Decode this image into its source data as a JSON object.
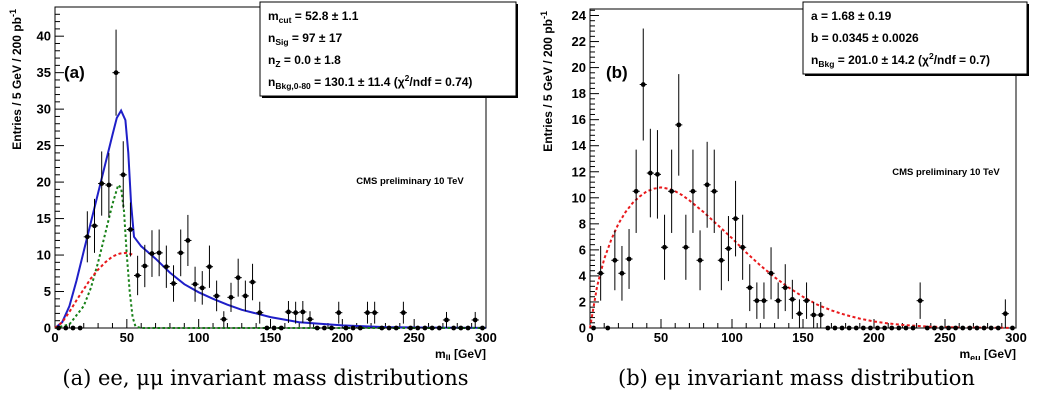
{
  "chart_data": [
    {
      "type": "scatter",
      "panel_label": "(a)",
      "ylabel": "Entries / 5 GeV / 200 pb",
      "ylabel_sup": "-1",
      "xlabel": "m",
      "xlabel_sub": "ll",
      "xlabel_unit": " [GeV]",
      "xlim": [
        0,
        300
      ],
      "ylim": [
        0,
        44
      ],
      "x_ticks": [
        0,
        50,
        100,
        150,
        200,
        250,
        300
      ],
      "y_ticks": [
        0,
        5,
        10,
        15,
        20,
        25,
        30,
        35,
        40
      ],
      "grid": false,
      "watermark": "CMS preliminary 10 TeV",
      "stats_box": [
        {
          "name": "m",
          "sub": "cut",
          "text": " = 52.8 ± 1.1"
        },
        {
          "name": "n",
          "sub": "Sig",
          "text": " = 97 ± 17"
        },
        {
          "name": "n",
          "sub": "Z",
          "text": " = 0.0 ± 1.8"
        },
        {
          "name": "n",
          "sub": "Bkg,0-80",
          "text": " = 130.1 ± 11.4 (χ",
          "sup": "2",
          "tail": "/ndf = 0.74)"
        }
      ],
      "points": [
        {
          "x": 2.5,
          "y": 0,
          "err": 0
        },
        {
          "x": 7.5,
          "y": 0,
          "err": 0
        },
        {
          "x": 12.5,
          "y": 0,
          "err": 0
        },
        {
          "x": 17.5,
          "y": 0,
          "err": 0
        },
        {
          "x": 22.5,
          "y": 12.5,
          "err": 3.5
        },
        {
          "x": 27.5,
          "y": 14,
          "err": 3.7
        },
        {
          "x": 32.5,
          "y": 19.8,
          "err": 4.4
        },
        {
          "x": 37.5,
          "y": 19.6,
          "err": 4.4
        },
        {
          "x": 42.5,
          "y": 35,
          "err": 5.9
        },
        {
          "x": 47.5,
          "y": 21,
          "err": 4.6
        },
        {
          "x": 52.5,
          "y": 13.5,
          "err": 3.7
        },
        {
          "x": 57.5,
          "y": 7.2,
          "err": 2.7
        },
        {
          "x": 62.5,
          "y": 8.5,
          "err": 2.9
        },
        {
          "x": 67.5,
          "y": 10.2,
          "err": 3.2
        },
        {
          "x": 72.5,
          "y": 10.3,
          "err": 3.2
        },
        {
          "x": 77.5,
          "y": 8.4,
          "err": 2.9
        },
        {
          "x": 82.5,
          "y": 6.1,
          "err": 2.5
        },
        {
          "x": 87.5,
          "y": 10.3,
          "err": 3.2
        },
        {
          "x": 92.5,
          "y": 12,
          "err": 3.5
        },
        {
          "x": 97.5,
          "y": 6,
          "err": 2.4
        },
        {
          "x": 102.5,
          "y": 5.5,
          "err": 2.3
        },
        {
          "x": 107.5,
          "y": 8.4,
          "err": 2.9
        },
        {
          "x": 112.5,
          "y": 4.4,
          "err": 2.1
        },
        {
          "x": 117.5,
          "y": 1.2,
          "err": 1.1
        },
        {
          "x": 122.5,
          "y": 4.2,
          "err": 2
        },
        {
          "x": 127.5,
          "y": 6.9,
          "err": 2.6
        },
        {
          "x": 132.5,
          "y": 4.4,
          "err": 2.1
        },
        {
          "x": 137.5,
          "y": 6.3,
          "err": 2.5
        },
        {
          "x": 142.5,
          "y": 2.1,
          "err": 1.5
        },
        {
          "x": 147.5,
          "y": 0,
          "err": 0
        },
        {
          "x": 152.5,
          "y": 0,
          "err": 0
        },
        {
          "x": 157.5,
          "y": 0,
          "err": 0
        },
        {
          "x": 162.5,
          "y": 2.2,
          "err": 1.5
        },
        {
          "x": 167.5,
          "y": 2.1,
          "err": 1.5
        },
        {
          "x": 172.5,
          "y": 2.2,
          "err": 1.5
        },
        {
          "x": 177.5,
          "y": 1.2,
          "err": 1.1
        },
        {
          "x": 182.5,
          "y": 0,
          "err": 0
        },
        {
          "x": 187.5,
          "y": 0,
          "err": 0
        },
        {
          "x": 192.5,
          "y": 0,
          "err": 0
        },
        {
          "x": 197.5,
          "y": 2.1,
          "err": 1.5
        },
        {
          "x": 202.5,
          "y": 0,
          "err": 0
        },
        {
          "x": 207.5,
          "y": 0,
          "err": 0
        },
        {
          "x": 212.5,
          "y": 0,
          "err": 0
        },
        {
          "x": 217.5,
          "y": 2.1,
          "err": 1.5
        },
        {
          "x": 222.5,
          "y": 2.1,
          "err": 1.5
        },
        {
          "x": 227.5,
          "y": 0,
          "err": 0
        },
        {
          "x": 232.5,
          "y": 0,
          "err": 0
        },
        {
          "x": 237.5,
          "y": 0,
          "err": 0
        },
        {
          "x": 242.5,
          "y": 2.1,
          "err": 1.5
        },
        {
          "x": 247.5,
          "y": 0,
          "err": 0
        },
        {
          "x": 252.5,
          "y": 0,
          "err": 0
        },
        {
          "x": 257.5,
          "y": 0,
          "err": 0
        },
        {
          "x": 262.5,
          "y": 0,
          "err": 0
        },
        {
          "x": 267.5,
          "y": 0,
          "err": 0
        },
        {
          "x": 272.5,
          "y": 1.1,
          "err": 1.1
        },
        {
          "x": 277.5,
          "y": 0,
          "err": 0
        },
        {
          "x": 282.5,
          "y": 0,
          "err": 0
        },
        {
          "x": 287.5,
          "y": 0,
          "err": 0
        },
        {
          "x": 292.5,
          "y": 1.1,
          "err": 1.1
        },
        {
          "x": 297.5,
          "y": 0,
          "err": 0
        }
      ],
      "curves": [
        {
          "style": "total-fit",
          "color": "#1f1fc8",
          "dash": "",
          "points": [
            [
              0,
              0
            ],
            [
              5,
              0.8
            ],
            [
              10,
              3
            ],
            [
              15,
              6.5
            ],
            [
              20,
              10.5
            ],
            [
              25,
              14.5
            ],
            [
              30,
              18.5
            ],
            [
              35,
              22.5
            ],
            [
              40,
              26.5
            ],
            [
              43,
              28.8
            ],
            [
              46,
              29.8
            ],
            [
              49,
              28.5
            ],
            [
              51,
              24
            ],
            [
              53,
              17
            ],
            [
              55,
              12.5
            ],
            [
              60,
              11.2
            ],
            [
              70,
              9.5
            ],
            [
              80,
              7.6
            ],
            [
              90,
              6
            ],
            [
              100,
              4.9
            ],
            [
              110,
              4
            ],
            [
              120,
              3.2
            ],
            [
              130,
              2.5
            ],
            [
              150,
              1.5
            ],
            [
              170,
              0.8
            ],
            [
              200,
              0.35
            ],
            [
              230,
              0.12
            ],
            [
              260,
              0.05
            ],
            [
              300,
              0.02
            ]
          ]
        },
        {
          "style": "signal",
          "color": "#178017",
          "dash": "2.5,2.5",
          "points": [
            [
              0,
              0
            ],
            [
              10,
              0.5
            ],
            [
              20,
              3
            ],
            [
              25,
              5.5
            ],
            [
              30,
              9
            ],
            [
              35,
              13
            ],
            [
              40,
              17
            ],
            [
              44,
              19.6
            ],
            [
              46,
              19.2
            ],
            [
              48,
              16
            ],
            [
              50,
              10
            ],
            [
              52,
              5
            ],
            [
              54,
              1.5
            ],
            [
              56,
              0.2
            ],
            [
              60,
              0
            ],
            [
              300,
              0
            ]
          ]
        },
        {
          "style": "background",
          "color": "#e8191c",
          "dash": "3,2.5",
          "points": [
            [
              0,
              0
            ],
            [
              5,
              0.8
            ],
            [
              10,
              2.2
            ],
            [
              15,
              3.8
            ],
            [
              20,
              5.3
            ],
            [
              25,
              6.8
            ],
            [
              30,
              8
            ],
            [
              35,
              9
            ],
            [
              40,
              9.8
            ],
            [
              45,
              10.2
            ],
            [
              50,
              10.3
            ],
            [
              55,
              10
            ]
          ]
        }
      ]
    },
    {
      "type": "scatter",
      "panel_label": "(b)",
      "ylabel": "Entries / 5 GeV / 200 pb",
      "ylabel_sup": "-1",
      "xlabel": "m",
      "xlabel_sub": "eμ",
      "xlabel_unit": " [GeV]",
      "xlim": [
        0,
        300
      ],
      "ylim": [
        0,
        24.5
      ],
      "x_ticks": [
        0,
        50,
        100,
        150,
        200,
        250,
        300
      ],
      "y_ticks": [
        0,
        2,
        4,
        6,
        8,
        10,
        12,
        14,
        16,
        18,
        20,
        22,
        24
      ],
      "grid": false,
      "watermark": "CMS preliminary 10 TeV",
      "stats_box": [
        {
          "name": "a",
          "sub": "",
          "text": " = 1.68 ± 0.19"
        },
        {
          "name": "b",
          "sub": "",
          "text": " = 0.0345 ± 0.0026"
        },
        {
          "name": "n",
          "sub": "Bkg",
          "text": " = 201.0 ± 14.2 (χ",
          "sup": "2",
          "tail": "/ndf = 0.7)"
        }
      ],
      "points": [
        {
          "x": 2.5,
          "y": 0,
          "err": 0
        },
        {
          "x": 7.5,
          "y": 4.2,
          "err": 2.1
        },
        {
          "x": 12.5,
          "y": 0,
          "err": 0
        },
        {
          "x": 17.5,
          "y": 5.2,
          "err": 2.3
        },
        {
          "x": 22.5,
          "y": 4.2,
          "err": 2.1
        },
        {
          "x": 27.5,
          "y": 5.3,
          "err": 2.3
        },
        {
          "x": 32.5,
          "y": 10.5,
          "err": 3.2
        },
        {
          "x": 37.5,
          "y": 18.7,
          "err": 4.3
        },
        {
          "x": 42.5,
          "y": 11.9,
          "err": 3.4
        },
        {
          "x": 47.5,
          "y": 11.8,
          "err": 3.4
        },
        {
          "x": 52.5,
          "y": 6.2,
          "err": 2.5
        },
        {
          "x": 57.5,
          "y": 10.5,
          "err": 3.2
        },
        {
          "x": 62.5,
          "y": 15.6,
          "err": 3.9
        },
        {
          "x": 67.5,
          "y": 6.2,
          "err": 2.5
        },
        {
          "x": 72.5,
          "y": 10.5,
          "err": 3.2
        },
        {
          "x": 77.5,
          "y": 5.2,
          "err": 2.3
        },
        {
          "x": 82.5,
          "y": 11,
          "err": 3.3
        },
        {
          "x": 87.5,
          "y": 10.5,
          "err": 3.2
        },
        {
          "x": 92.5,
          "y": 5.2,
          "err": 2.3
        },
        {
          "x": 97.5,
          "y": 6.1,
          "err": 2.5
        },
        {
          "x": 102.5,
          "y": 8.4,
          "err": 2.9
        },
        {
          "x": 107.5,
          "y": 6.2,
          "err": 2.5
        },
        {
          "x": 112.5,
          "y": 3.1,
          "err": 1.8
        },
        {
          "x": 117.5,
          "y": 2.1,
          "err": 1.4
        },
        {
          "x": 122.5,
          "y": 2.1,
          "err": 1.4
        },
        {
          "x": 127.5,
          "y": 4.2,
          "err": 2
        },
        {
          "x": 132.5,
          "y": 2.1,
          "err": 1.4
        },
        {
          "x": 137.5,
          "y": 3.1,
          "err": 1.8
        },
        {
          "x": 142.5,
          "y": 2.2,
          "err": 1.5
        },
        {
          "x": 147.5,
          "y": 1.1,
          "err": 1.1
        },
        {
          "x": 152.5,
          "y": 2.1,
          "err": 1.4
        },
        {
          "x": 157.5,
          "y": 1,
          "err": 1
        },
        {
          "x": 162.5,
          "y": 1,
          "err": 1
        },
        {
          "x": 167.5,
          "y": 0,
          "err": 0
        },
        {
          "x": 172.5,
          "y": 0,
          "err": 0
        },
        {
          "x": 177.5,
          "y": 0,
          "err": 0
        },
        {
          "x": 182.5,
          "y": 0,
          "err": 0
        },
        {
          "x": 187.5,
          "y": 0,
          "err": 0
        },
        {
          "x": 192.5,
          "y": 0,
          "err": 0
        },
        {
          "x": 197.5,
          "y": 0,
          "err": 0
        },
        {
          "x": 202.5,
          "y": 0,
          "err": 0
        },
        {
          "x": 207.5,
          "y": 0,
          "err": 0
        },
        {
          "x": 212.5,
          "y": 0,
          "err": 0
        },
        {
          "x": 217.5,
          "y": 0,
          "err": 0
        },
        {
          "x": 222.5,
          "y": 0,
          "err": 0
        },
        {
          "x": 227.5,
          "y": 0,
          "err": 0
        },
        {
          "x": 232.5,
          "y": 2.1,
          "err": 1.4
        },
        {
          "x": 237.5,
          "y": 0,
          "err": 0
        },
        {
          "x": 242.5,
          "y": 0,
          "err": 0
        },
        {
          "x": 247.5,
          "y": 0,
          "err": 0
        },
        {
          "x": 252.5,
          "y": 0,
          "err": 0
        },
        {
          "x": 257.5,
          "y": 0,
          "err": 0
        },
        {
          "x": 262.5,
          "y": 0,
          "err": 0
        },
        {
          "x": 267.5,
          "y": 0,
          "err": 0
        },
        {
          "x": 272.5,
          "y": 0,
          "err": 0
        },
        {
          "x": 277.5,
          "y": 0,
          "err": 0
        },
        {
          "x": 282.5,
          "y": 0,
          "err": 0
        },
        {
          "x": 287.5,
          "y": 0,
          "err": 0
        },
        {
          "x": 292.5,
          "y": 1.1,
          "err": 1.1
        },
        {
          "x": 297.5,
          "y": 0,
          "err": 0
        }
      ],
      "curves": [
        {
          "style": "background",
          "color": "#e8191c",
          "dash": "3,2.5",
          "points": [
            [
              0,
              0
            ],
            [
              5,
              3.2
            ],
            [
              10,
              5.3
            ],
            [
              15,
              6.8
            ],
            [
              20,
              8
            ],
            [
              25,
              8.9
            ],
            [
              30,
              9.6
            ],
            [
              35,
              10.1
            ],
            [
              40,
              10.5
            ],
            [
              45,
              10.7
            ],
            [
              50,
              10.8
            ],
            [
              55,
              10.7
            ],
            [
              60,
              10.5
            ],
            [
              65,
              10.2
            ],
            [
              70,
              9.8
            ],
            [
              80,
              8.9
            ],
            [
              90,
              7.9
            ],
            [
              100,
              6.9
            ],
            [
              110,
              5.8
            ],
            [
              120,
              4.8
            ],
            [
              130,
              3.9
            ],
            [
              140,
              3.1
            ],
            [
              150,
              2.4
            ],
            [
              160,
              1.8
            ],
            [
              170,
              1.35
            ],
            [
              180,
              1
            ],
            [
              190,
              0.72
            ],
            [
              200,
              0.5
            ],
            [
              210,
              0.35
            ],
            [
              220,
              0.24
            ],
            [
              230,
              0.16
            ],
            [
              240,
              0.1
            ],
            [
              250,
              0.07
            ],
            [
              260,
              0.04
            ],
            [
              270,
              0.03
            ],
            [
              280,
              0.02
            ],
            [
              300,
              0.01
            ]
          ]
        }
      ]
    }
  ],
  "captions": {
    "a": "(a) ee, μμ invariant mass distributions",
    "b": "(b) eμ invariant mass distribution"
  }
}
